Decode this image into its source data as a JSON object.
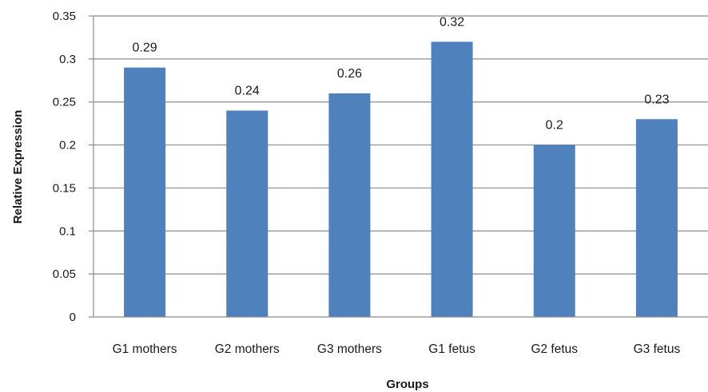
{
  "chart_data": {
    "type": "bar",
    "title": "",
    "xlabel": "Groups",
    "ylabel": "Relative Expression",
    "categories": [
      "G1 mothers",
      "G2 mothers",
      "G3 mothers",
      "G1 fetus",
      "G2 fetus",
      "G3 fetus"
    ],
    "values": [
      0.29,
      0.24,
      0.26,
      0.32,
      0.2,
      0.23
    ],
    "data_labels": [
      "0.29",
      "0.24",
      "0.26",
      "0.32",
      "0.2",
      "0.23"
    ],
    "yticks": [
      0,
      0.05,
      0.1,
      0.15,
      0.2,
      0.25,
      0.3,
      0.35
    ],
    "ytick_labels": [
      "0",
      "0.05",
      "0.1",
      "0.15",
      "0.2",
      "0.25",
      "0.3",
      "0.35"
    ],
    "ylim": [
      0,
      0.35
    ],
    "grid": true,
    "legend": "none",
    "colors": {
      "bar": "#4f81bd",
      "grid": "#8c8c8c",
      "axis": "#8c8c8c"
    }
  }
}
